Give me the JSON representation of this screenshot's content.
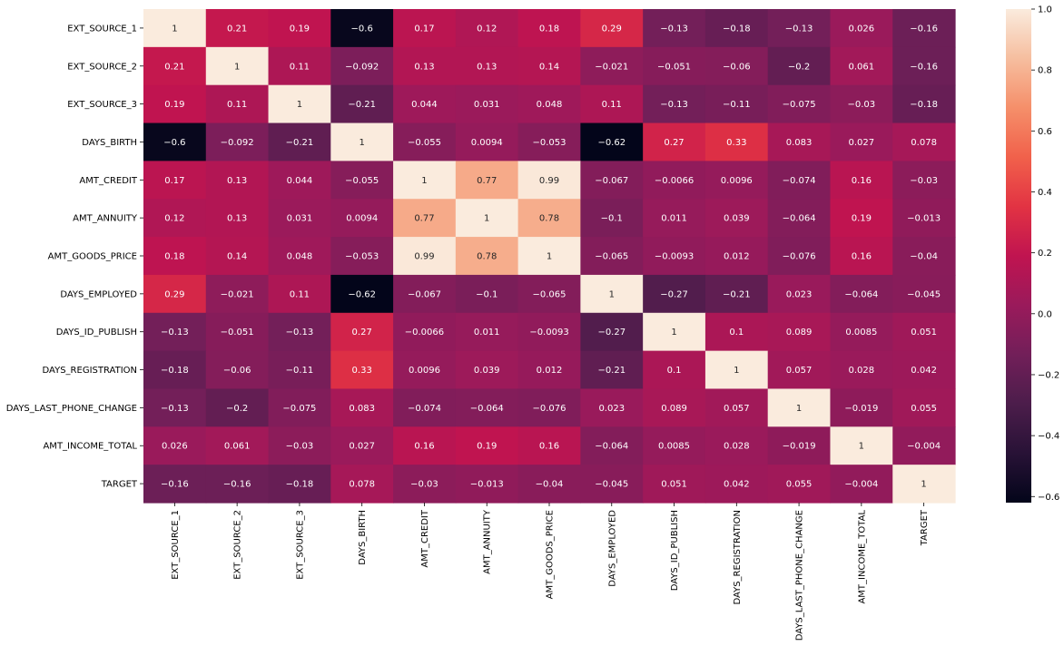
{
  "chart_data": {
    "type": "heatmap",
    "title": "",
    "xlabel": "",
    "ylabel": "",
    "labels": [
      "EXT_SOURCE_1",
      "EXT_SOURCE_2",
      "EXT_SOURCE_3",
      "DAYS_BIRTH",
      "AMT_CREDIT",
      "AMT_ANNUITY",
      "AMT_GOODS_PRICE",
      "DAYS_EMPLOYED",
      "DAYS_ID_PUBLISH",
      "DAYS_REGISTRATION",
      "DAYS_LAST_PHONE_CHANGE",
      "AMT_INCOME_TOTAL",
      "TARGET"
    ],
    "values": [
      [
        1,
        0.21,
        0.19,
        -0.6,
        0.17,
        0.12,
        0.18,
        0.29,
        -0.13,
        -0.18,
        -0.13,
        0.026,
        -0.16
      ],
      [
        0.21,
        1,
        0.11,
        -0.092,
        0.13,
        0.13,
        0.14,
        -0.021,
        -0.051,
        -0.06,
        -0.2,
        0.061,
        -0.16
      ],
      [
        0.19,
        0.11,
        1,
        -0.21,
        0.044,
        0.031,
        0.048,
        0.11,
        -0.13,
        -0.11,
        -0.075,
        -0.03,
        -0.18
      ],
      [
        -0.6,
        -0.092,
        -0.21,
        1,
        -0.055,
        0.0094,
        -0.053,
        -0.62,
        0.27,
        0.33,
        0.083,
        0.027,
        0.078
      ],
      [
        0.17,
        0.13,
        0.044,
        -0.055,
        1,
        0.77,
        0.99,
        -0.067,
        -0.0066,
        0.0096,
        -0.074,
        0.16,
        -0.03
      ],
      [
        0.12,
        0.13,
        0.031,
        0.0094,
        0.77,
        1,
        0.78,
        -0.1,
        0.011,
        0.039,
        -0.064,
        0.19,
        -0.013
      ],
      [
        0.18,
        0.14,
        0.048,
        -0.053,
        0.99,
        0.78,
        1,
        -0.065,
        -0.0093,
        0.012,
        -0.076,
        0.16,
        -0.04
      ],
      [
        0.29,
        -0.021,
        0.11,
        -0.62,
        -0.067,
        -0.1,
        -0.065,
        1,
        -0.27,
        -0.21,
        0.023,
        -0.064,
        -0.045
      ],
      [
        -0.13,
        -0.051,
        -0.13,
        0.27,
        -0.0066,
        0.011,
        -0.0093,
        -0.27,
        1,
        0.1,
        0.089,
        0.0085,
        0.051
      ],
      [
        -0.18,
        -0.06,
        -0.11,
        0.33,
        0.0096,
        0.039,
        0.012,
        -0.21,
        0.1,
        1,
        0.057,
        0.028,
        0.042
      ],
      [
        -0.13,
        -0.2,
        -0.075,
        0.083,
        -0.074,
        -0.064,
        -0.076,
        0.023,
        0.089,
        0.057,
        1,
        -0.019,
        0.055
      ],
      [
        0.026,
        0.061,
        -0.03,
        0.027,
        0.16,
        0.19,
        0.16,
        -0.064,
        0.0085,
        0.028,
        -0.019,
        1,
        -0.004
      ],
      [
        -0.16,
        -0.16,
        -0.18,
        0.078,
        -0.03,
        -0.013,
        -0.04,
        -0.045,
        0.051,
        0.042,
        0.055,
        -0.004,
        1
      ]
    ],
    "vmin": -0.62,
    "vmax": 1.0,
    "colormap": "rocket",
    "colorbar": {
      "ticks": [
        1.0,
        0.8,
        0.6,
        0.4,
        0.2,
        0.0,
        -0.2,
        -0.4,
        -0.6
      ],
      "tick_labels": [
        "1.0",
        "0.8",
        "0.6",
        "0.4",
        "0.2",
        "0.0",
        "−0.2",
        "−0.4",
        "−0.6"
      ]
    },
    "annotations": true,
    "grid": false,
    "legend": "colorbar-right"
  }
}
